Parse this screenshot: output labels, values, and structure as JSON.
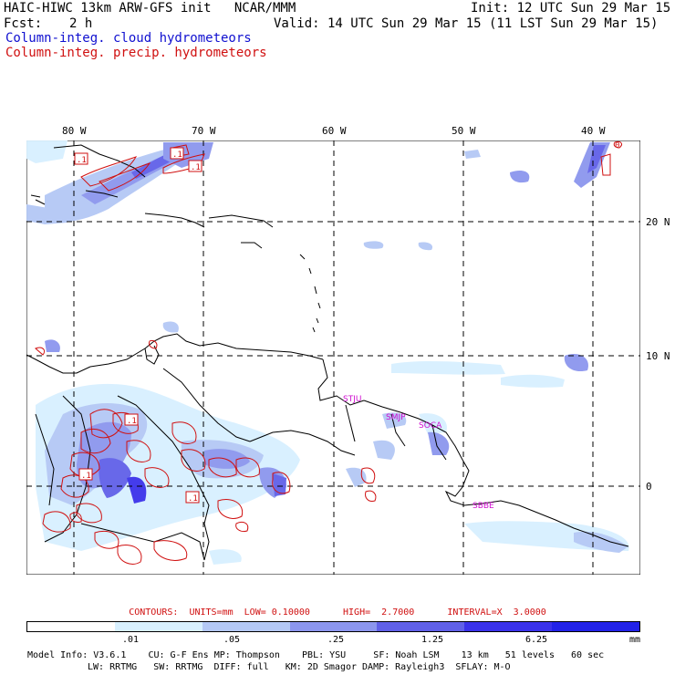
{
  "header": {
    "title": "HAIC-HIWC 13km ARW-GFS init   NCAR/MMM",
    "init": "Init: 12 UTC Sun 29 Mar 15",
    "fcst_label": "Fcst:",
    "fcst_value": "2 h",
    "valid": "Valid: 14 UTC Sun 29 Mar 15 (11 LST Sun 29 Mar 15)",
    "field_cloud": "Column-integ. cloud hydrometeors",
    "field_precip": "Column-integ. precip. hydrometeors"
  },
  "map": {
    "lon_labels": [
      "80 W",
      "70 W",
      "60 W",
      "50 W",
      "40 W"
    ],
    "lat_labels": [
      "20 N",
      "10 N",
      "0"
    ],
    "stations": [
      "STJU",
      "SMJP",
      "SOCA",
      "SBBE"
    ],
    "contour_labels": [
      ".1",
      ".1",
      ".1",
      ".1",
      ".1",
      ".1",
      "0"
    ]
  },
  "contours": {
    "text": "CONTOURS:  UNITS=mm  LOW= 0.10000      HIGH=  2.7000      INTERVAL=X  3.0000"
  },
  "colorbar": {
    "labels": [
      ".01",
      ".05",
      ".25",
      "1.25",
      "6.25",
      "mm"
    ],
    "colors": [
      "#ffffff",
      "#d8f0ff",
      "#b4c8f5",
      "#8c96ee",
      "#6060e8",
      "#3a32ea",
      "#2222e8"
    ]
  },
  "footer": {
    "line1": "Model Info: V3.6.1    CU: G-F Ens MP: Thompson    PBL: YSU     SF: Noah LSM    13 km   51 levels   60 sec",
    "line2": "LW: RRTMG   SW: RRTMG  DIFF: full   KM: 2D Smagor DAMP: Rayleigh3  SFLAY: M-O"
  },
  "colors": {
    "title": "#000000",
    "cloud": "#1010d0",
    "precip": "#d01010",
    "station": "#d010d0"
  }
}
